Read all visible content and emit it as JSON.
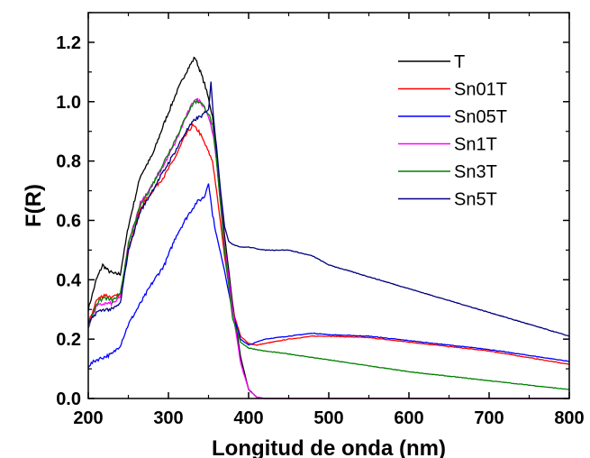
{
  "chart_data": {
    "type": "line",
    "xlabel": "Longitud de onda (nm)",
    "ylabel": "F(R)",
    "xlim": [
      200,
      800
    ],
    "ylim": [
      0.0,
      1.3
    ],
    "xticks": [
      200,
      300,
      400,
      500,
      600,
      700,
      800
    ],
    "xtick_labels": [
      "200",
      "300",
      "400",
      "500",
      "600",
      "700",
      "800"
    ],
    "yticks": [
      0.0,
      0.2,
      0.4,
      0.6,
      0.8,
      1.0,
      1.2
    ],
    "ytick_labels": [
      "0.0",
      "0.2",
      "0.4",
      "0.6",
      "0.8",
      "1.0",
      "1.2"
    ],
    "grid": false,
    "legend_position": "top-right",
    "series": [
      {
        "name": "T",
        "color": "#000000",
        "x": [
          200,
          210,
          218,
          225,
          232,
          240,
          250,
          265,
          280,
          295,
          310,
          322,
          333,
          340,
          345,
          350,
          355,
          360,
          370,
          380,
          390,
          400,
          410,
          420,
          450,
          500,
          600,
          700,
          800
        ],
        "y": [
          0.3,
          0.4,
          0.45,
          0.43,
          0.42,
          0.42,
          0.58,
          0.75,
          0.82,
          0.93,
          1.03,
          1.1,
          1.15,
          1.1,
          1.06,
          1.01,
          0.95,
          0.82,
          0.55,
          0.32,
          0.14,
          0.03,
          0.005,
          0.0,
          0.0,
          0.0,
          0.0,
          0.0,
          0.0
        ]
      },
      {
        "name": "Sn01T",
        "color": "#ff0000",
        "x": [
          200,
          210,
          220,
          230,
          240,
          250,
          265,
          280,
          295,
          310,
          320,
          330,
          338,
          345,
          350,
          355,
          360,
          370,
          380,
          390,
          400,
          410,
          420,
          450,
          480,
          500,
          550,
          600,
          700,
          800
        ],
        "y": [
          0.25,
          0.33,
          0.35,
          0.34,
          0.35,
          0.5,
          0.64,
          0.7,
          0.75,
          0.82,
          0.88,
          0.92,
          0.9,
          0.86,
          0.83,
          0.8,
          0.7,
          0.48,
          0.3,
          0.21,
          0.185,
          0.18,
          0.185,
          0.2,
          0.21,
          0.21,
          0.205,
          0.19,
          0.16,
          0.115
        ]
      },
      {
        "name": "Sn05T",
        "color": "#0000ff",
        "x": [
          200,
          210,
          220,
          230,
          240,
          250,
          265,
          280,
          295,
          310,
          325,
          335,
          345,
          350,
          355,
          360,
          370,
          380,
          390,
          400,
          410,
          420,
          450,
          480,
          500,
          550,
          600,
          700,
          800
        ],
        "y": [
          0.11,
          0.13,
          0.14,
          0.15,
          0.18,
          0.25,
          0.32,
          0.39,
          0.45,
          0.55,
          0.62,
          0.66,
          0.68,
          0.73,
          0.62,
          0.55,
          0.43,
          0.29,
          0.2,
          0.18,
          0.19,
          0.2,
          0.21,
          0.22,
          0.215,
          0.21,
          0.195,
          0.165,
          0.125
        ]
      },
      {
        "name": "Sn1T",
        "color": "#ff00ff",
        "x": [
          200,
          210,
          220,
          230,
          240,
          250,
          265,
          280,
          295,
          310,
          322,
          333,
          340,
          345,
          350,
          355,
          360,
          370,
          380,
          390,
          400,
          410,
          420,
          450,
          500,
          600,
          700,
          800
        ],
        "y": [
          0.24,
          0.31,
          0.32,
          0.32,
          0.34,
          0.52,
          0.66,
          0.72,
          0.79,
          0.87,
          0.95,
          1.01,
          1.0,
          0.98,
          0.95,
          0.9,
          0.8,
          0.52,
          0.3,
          0.12,
          0.03,
          0.004,
          0.0,
          0.0,
          0.0,
          0.0,
          0.0,
          0.0
        ]
      },
      {
        "name": "Sn3T",
        "color": "#008000",
        "x": [
          200,
          210,
          220,
          230,
          240,
          250,
          265,
          280,
          295,
          310,
          322,
          332,
          340,
          345,
          350,
          355,
          360,
          370,
          380,
          390,
          400,
          420,
          450,
          500,
          550,
          600,
          700,
          800
        ],
        "y": [
          0.24,
          0.32,
          0.34,
          0.33,
          0.35,
          0.52,
          0.65,
          0.72,
          0.8,
          0.88,
          0.95,
          1.0,
          1.0,
          0.98,
          0.96,
          0.92,
          0.8,
          0.5,
          0.27,
          0.19,
          0.17,
          0.16,
          0.15,
          0.13,
          0.11,
          0.09,
          0.06,
          0.03
        ]
      },
      {
        "name": "Sn5T",
        "color": "#000080",
        "x": [
          200,
          210,
          220,
          230,
          240,
          250,
          265,
          280,
          295,
          310,
          322,
          333,
          340,
          345,
          350,
          353,
          356,
          360,
          365,
          370,
          375,
          380,
          390,
          400,
          420,
          450,
          480,
          500,
          550,
          600,
          650,
          700,
          800
        ],
        "y": [
          0.25,
          0.29,
          0.3,
          0.3,
          0.32,
          0.5,
          0.63,
          0.7,
          0.77,
          0.84,
          0.9,
          0.94,
          0.95,
          0.96,
          0.97,
          1.07,
          0.95,
          0.85,
          0.7,
          0.58,
          0.53,
          0.52,
          0.51,
          0.51,
          0.5,
          0.5,
          0.48,
          0.45,
          0.41,
          0.37,
          0.33,
          0.29,
          0.21
        ]
      }
    ]
  }
}
